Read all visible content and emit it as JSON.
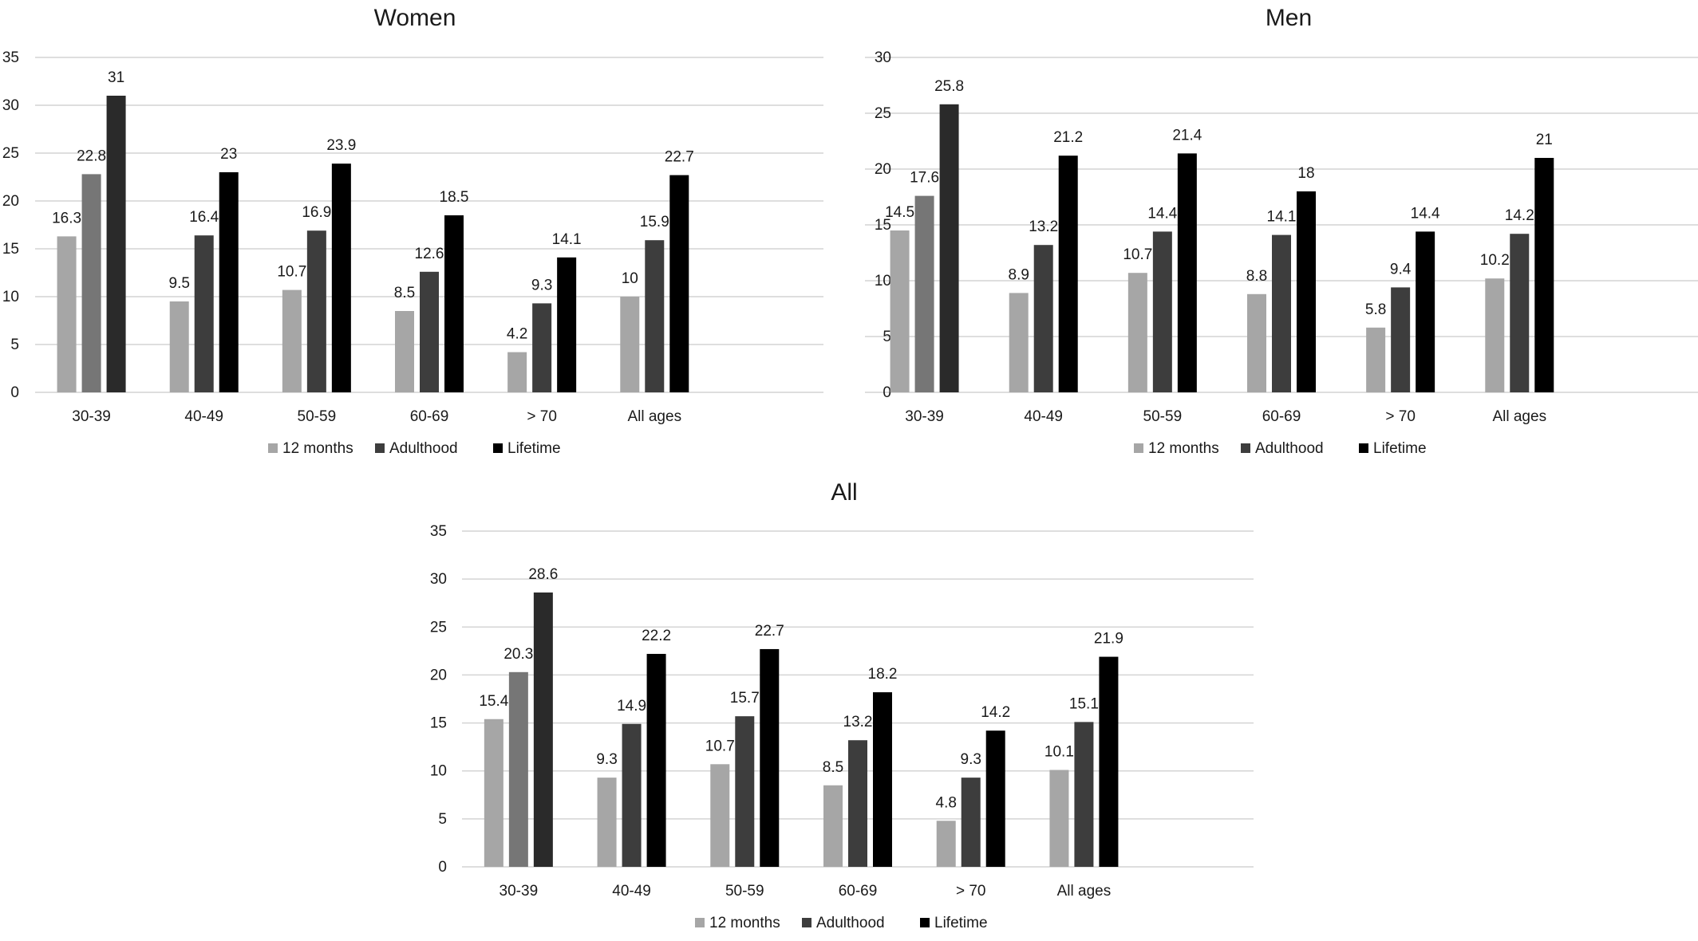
{
  "chart_data": [
    {
      "type": "bar",
      "title": "Women",
      "categories": [
        "30-39",
        "40-49",
        "50-59",
        "60-69",
        "> 70",
        "All ages"
      ],
      "series": [
        {
          "name": "12 months",
          "values": [
            16.3,
            9.5,
            10.7,
            8.5,
            4.2,
            10
          ]
        },
        {
          "name": "Adulthood",
          "values": [
            22.8,
            16.4,
            16.9,
            12.6,
            9.3,
            15.9
          ]
        },
        {
          "name": "Lifetime",
          "values": [
            31,
            23,
            23.9,
            18.5,
            14.1,
            22.7
          ]
        }
      ],
      "value_labels": [
        [
          "16.3",
          "9.5",
          "10.7",
          "8.5",
          "4.2",
          "10"
        ],
        [
          "22.8",
          "16.4",
          "16.9",
          "12.6",
          "9.3",
          "15.9"
        ],
        [
          "31",
          "23",
          "23.9",
          "18.5",
          "14.1",
          "22.7"
        ]
      ],
      "yticks": [
        "0",
        "5",
        "10",
        "15",
        "20",
        "25",
        "30",
        "35"
      ],
      "ylim": [
        0,
        35
      ],
      "grid": true,
      "legend": "bottom"
    },
    {
      "type": "bar",
      "title": "Men",
      "categories": [
        "30-39",
        "40-49",
        "50-59",
        "60-69",
        "> 70",
        "All ages"
      ],
      "series": [
        {
          "name": "12 months",
          "values": [
            14.5,
            8.9,
            10.7,
            8.8,
            5.8,
            10.2
          ]
        },
        {
          "name": "Adulthood",
          "values": [
            17.6,
            13.2,
            14.4,
            14.1,
            9.4,
            14.2
          ]
        },
        {
          "name": "Lifetime",
          "values": [
            25.8,
            21.2,
            21.4,
            18,
            14.4,
            21
          ]
        }
      ],
      "value_labels": [
        [
          "14.5",
          "8.9",
          "10.7",
          "8.8",
          "5.8",
          "10.2"
        ],
        [
          "17.6",
          "13.2",
          "14.4",
          "14.1",
          "9.4",
          "14.2"
        ],
        [
          "25.8",
          "21.2",
          "21.4",
          "18",
          "14.4",
          "21"
        ]
      ],
      "yticks": [
        "0",
        "5",
        "10",
        "15",
        "20",
        "25",
        "30"
      ],
      "ylim": [
        0,
        30
      ],
      "grid": true,
      "legend": "bottom"
    },
    {
      "type": "bar",
      "title": "All",
      "categories": [
        "30-39",
        "40-49",
        "50-59",
        "60-69",
        "> 70",
        "All ages"
      ],
      "series": [
        {
          "name": "12 months",
          "values": [
            15.4,
            9.3,
            10.7,
            8.5,
            4.8,
            10.1
          ]
        },
        {
          "name": "Adulthood",
          "values": [
            20.3,
            14.9,
            15.7,
            13.2,
            9.3,
            15.1
          ]
        },
        {
          "name": "Lifetime",
          "values": [
            28.6,
            22.2,
            22.7,
            18.2,
            14.2,
            21.9
          ]
        }
      ],
      "value_labels": [
        [
          "15.4",
          "9.3",
          "10.7",
          "8.5",
          "4.8",
          "10.1"
        ],
        [
          "20.3",
          "14.9",
          "15.7",
          "13.2",
          "9.3",
          "15.1"
        ],
        [
          "28.6",
          "22.2",
          "22.7",
          "18.2",
          "14.2",
          "21.9"
        ]
      ],
      "yticks": [
        "0",
        "5",
        "10",
        "15",
        "20",
        "25",
        "30",
        "35"
      ],
      "ylim": [
        0,
        35
      ],
      "grid": true,
      "legend": "bottom"
    }
  ],
  "colors": {
    "12 months": "#a6a6a6",
    "adulthood": "#3d3d3d",
    "lifetime": "#000000",
    "first_group_adulthood": "#767676",
    "first_group_lifetime": "#2a2a2a",
    "gridline": "#d4d4d4",
    "text": "#1a1a1a"
  }
}
